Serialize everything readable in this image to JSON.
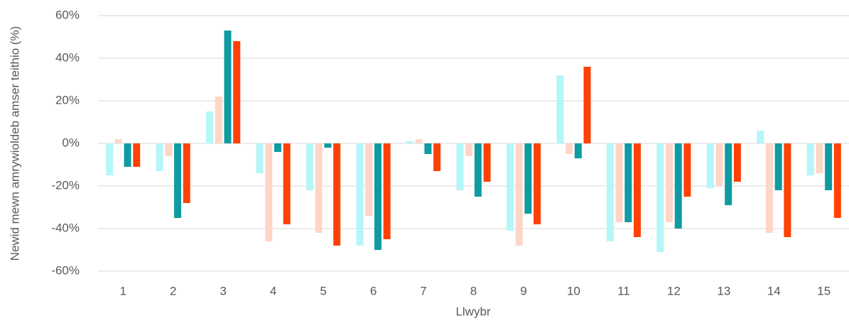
{
  "chart_data": {
    "type": "bar",
    "xlabel": "Llwybr",
    "ylabel": "Newid mewn amrywioldeb amser teithio (%)",
    "categories": [
      "1",
      "2",
      "3",
      "4",
      "5",
      "6",
      "7",
      "8",
      "9",
      "10",
      "11",
      "12",
      "13",
      "14",
      "15"
    ],
    "series": [
      {
        "color": "#b5f6f8",
        "values": [
          -15,
          -13,
          15,
          -14,
          -22,
          -48,
          1,
          -22,
          -41,
          32,
          -46,
          -51,
          -21,
          6,
          -15
        ]
      },
      {
        "color": "#fdd6c8",
        "values": [
          2,
          -6,
          22,
          -46,
          -42,
          -34,
          2,
          -6,
          -48,
          -5,
          -37,
          -37,
          -20,
          -42,
          -14
        ]
      },
      {
        "color": "#0e9ba1",
        "values": [
          -11,
          -35,
          53,
          -4,
          -2,
          -50,
          -5,
          -25,
          -33,
          -7,
          -37,
          -40,
          -29,
          -22,
          -22
        ]
      },
      {
        "color": "#ff4106",
        "values": [
          -11,
          -28,
          48,
          -38,
          -48,
          -45,
          -13,
          -18,
          -38,
          36,
          -44,
          -25,
          -18,
          -44,
          -35
        ]
      }
    ],
    "ylim": [
      -60,
      60
    ],
    "yticks": [
      {
        "value": -60,
        "label": "-60%"
      },
      {
        "value": -40,
        "label": "-40%"
      },
      {
        "value": -20,
        "label": "-20%"
      },
      {
        "value": 0,
        "label": "0%"
      },
      {
        "value": 20,
        "label": "20%"
      },
      {
        "value": 40,
        "label": "40%"
      },
      {
        "value": 60,
        "label": "60%"
      }
    ],
    "grid": true
  }
}
